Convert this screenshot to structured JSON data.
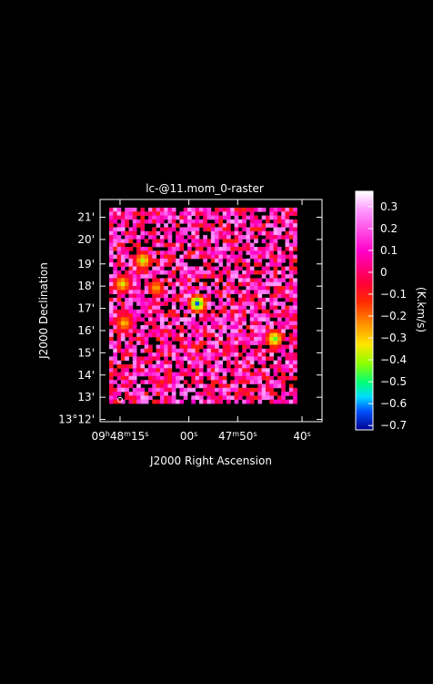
{
  "chart_data": {
    "type": "heatmap",
    "title": "lc-@11.mom_0-raster",
    "xlabel": "J2000 Right Ascension",
    "ylabel": "J2000 Declination",
    "colorbar_label": "(K.km/s)",
    "x_ticks": [
      {
        "label": "09h48m15s",
        "html": "09<tspan baseline-shift='super' font-size='8'>h</tspan>48<tspan baseline-shift='super' font-size='8'>m</tspan>15<tspan baseline-shift='super' font-size='8'>s</tspan>",
        "frac": 0.09
      },
      {
        "label": "00s",
        "html": "00<tspan baseline-shift='super' font-size='8'>s</tspan>",
        "frac": 0.4
      },
      {
        "label": "47m50s",
        "html": "47<tspan baseline-shift='super' font-size='8'>m</tspan>50<tspan baseline-shift='super' font-size='8'>s</tspan>",
        "frac": 0.62
      },
      {
        "label": "40s",
        "html": "40<tspan baseline-shift='super' font-size='8'>s</tspan>",
        "frac": 0.91
      }
    ],
    "y_ticks": [
      {
        "label": "21'",
        "frac": 0.92
      },
      {
        "label": "20'",
        "frac": 0.82
      },
      {
        "label": "19'",
        "frac": 0.71
      },
      {
        "label": "18'",
        "frac": 0.61
      },
      {
        "label": "17'",
        "frac": 0.51
      },
      {
        "label": "16'",
        "frac": 0.41
      },
      {
        "label": "15'",
        "frac": 0.31
      },
      {
        "label": "14'",
        "frac": 0.21
      },
      {
        "label": "13'",
        "frac": 0.11
      },
      {
        "label": "13°12'",
        "frac": 0.01
      }
    ],
    "colorbar_ticks": [
      0.3,
      0.2,
      0.1,
      0,
      -0.1,
      -0.2,
      -0.3,
      -0.4,
      -0.5,
      -0.6,
      -0.7
    ],
    "colorbar_tick_labels": [
      "0.3",
      "0.2",
      "0.1",
      "0",
      "−0.1",
      "−0.2",
      "−0.3",
      "−0.4",
      "−0.5",
      "−0.6",
      "−0.7"
    ],
    "vmin": -0.72,
    "vmax": 0.37,
    "grid": false,
    "features": [
      {
        "name": "strong-absorption-blob",
        "x": 0.47,
        "y": 0.51,
        "value": -0.65
      },
      {
        "name": "absorption-blob-right",
        "x": 0.88,
        "y": 0.33,
        "value": -0.5
      },
      {
        "name": "absorption-blob-left",
        "x": 0.18,
        "y": 0.73,
        "value": -0.42
      },
      {
        "name": "absorption-blob-far-left",
        "x": 0.07,
        "y": 0.61,
        "value": -0.38
      },
      {
        "name": "weak-blob-center",
        "x": 0.25,
        "y": 0.59,
        "value": -0.3
      },
      {
        "name": "weak-blob-lower-left",
        "x": 0.08,
        "y": 0.41,
        "value": -0.33
      }
    ]
  }
}
